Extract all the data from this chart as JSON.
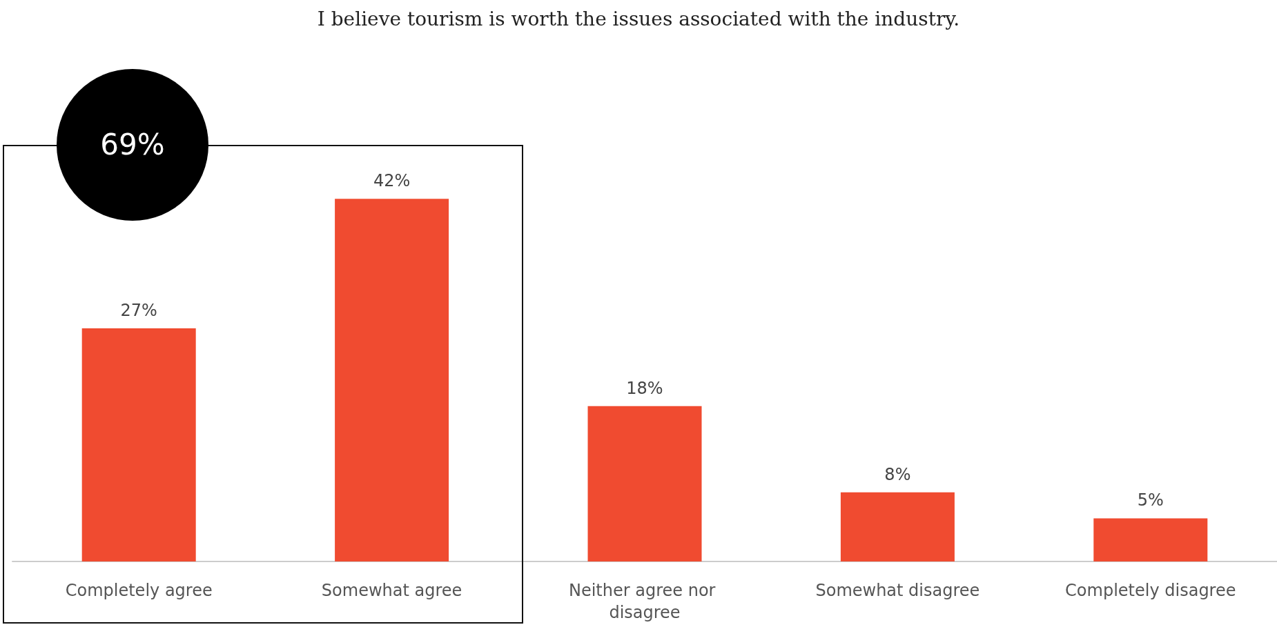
{
  "chart_data": {
    "type": "bar",
    "title": "I believe tourism is worth the issues associated with the industry.",
    "categories": [
      "Completely agree",
      "Somewhat agree",
      "Neither agree nor disagree",
      "Somewhat disagree",
      "Completely disagree"
    ],
    "values": [
      27,
      42,
      18,
      8,
      5
    ],
    "color": "#f04b30",
    "tick_labels": "x",
    "grid": false,
    "value_labels": [
      "27%",
      "42%",
      "18%",
      "8%",
      "5%"
    ],
    "annotations": [
      "69%"
    ]
  }
}
